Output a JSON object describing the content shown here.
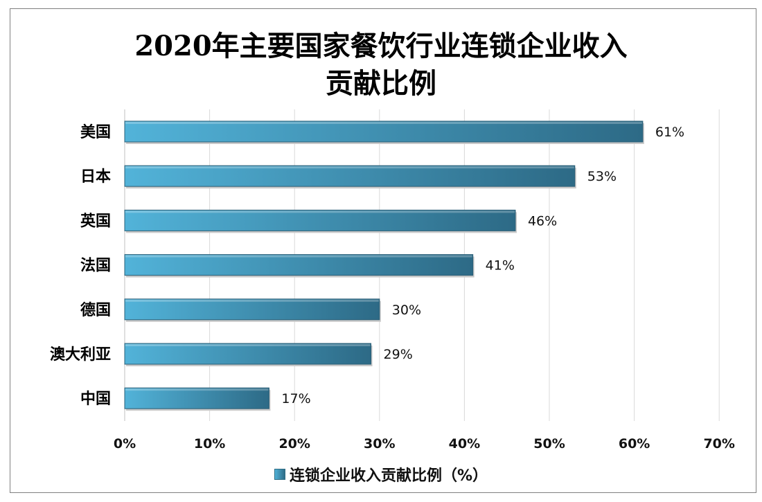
{
  "chart_data": {
    "type": "bar",
    "orientation": "horizontal",
    "title_lines": [
      "2020年主要国家餐饮行业连锁企业收入",
      "贡献比例"
    ],
    "categories": [
      "美国",
      "日本",
      "英国",
      "法国",
      "德国",
      "澳大利亚",
      "中国"
    ],
    "series": [
      {
        "name": "连锁企业收入贡献比例（%）",
        "values": [
          61,
          53,
          46,
          41,
          30,
          29,
          17
        ],
        "value_labels": [
          "61%",
          "53%",
          "46%",
          "41%",
          "30%",
          "29%",
          "17%"
        ]
      }
    ],
    "x_ticks": [
      "0%",
      "10%",
      "20%",
      "30%",
      "40%",
      "50%",
      "60%",
      "70%"
    ],
    "xlim": [
      0,
      70
    ],
    "grid": "vertical",
    "legend_position": "bottom",
    "colors": {
      "bar_light": "#52b3d9",
      "bar_dark": "#2d6a86",
      "grid": "#d9d9d9"
    }
  }
}
